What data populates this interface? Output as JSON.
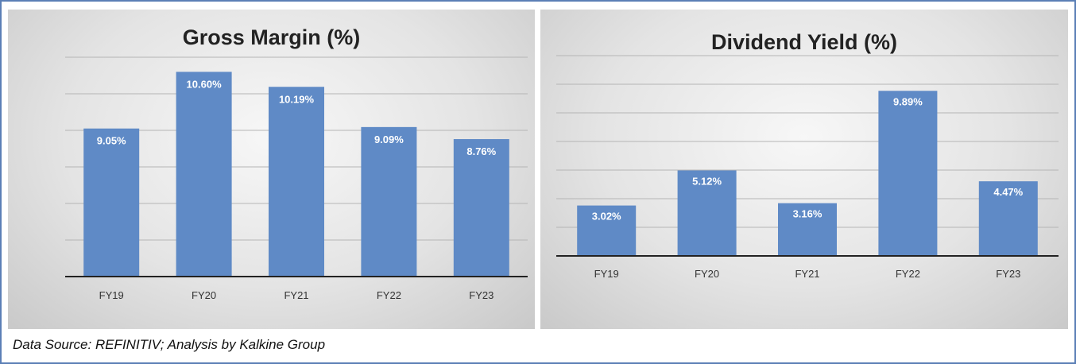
{
  "chart_data": [
    {
      "type": "bar",
      "title": "Gross Margin (%)",
      "categories": [
        "FY19",
        "FY20",
        "FY21",
        "FY22",
        "FY23"
      ],
      "values": [
        9.05,
        10.6,
        10.19,
        9.09,
        8.76
      ],
      "data_labels": [
        "9.05%",
        "10.60%",
        "10.19%",
        "9.09%",
        "8.76%"
      ],
      "ylim": [
        5,
        11
      ],
      "grid": true,
      "color": "#5f8ac6"
    },
    {
      "type": "bar",
      "title": "Dividend Yield (%)",
      "categories": [
        "FY19",
        "FY20",
        "FY21",
        "FY22",
        "FY23"
      ],
      "values": [
        3.02,
        5.12,
        3.16,
        9.89,
        4.47
      ],
      "data_labels": [
        "3.02%",
        "5.12%",
        "3.16%",
        "9.89%",
        "4.47%"
      ],
      "ylim": [
        0,
        12
      ],
      "grid": true,
      "color": "#5f8ac6"
    }
  ],
  "footer": "Data Source: REFINITIV; Analysis by Kalkine Group"
}
